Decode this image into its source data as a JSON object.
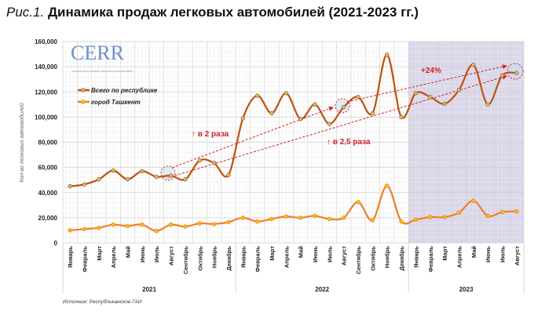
{
  "title": {
    "figure": "Рис.1.",
    "text": "Динамика продаж легковых автомобилей (2021-2023 гг.)"
  },
  "logo": {
    "text": "CERR",
    "subtitle": "CENTER FOR ECONOMIC RESEARCH AND REFORMS"
  },
  "source": "Источник: Республиканское ГАИ",
  "colors": {
    "republic": "#c0500a",
    "tashkent": "#f07f2a",
    "marker_fill": "#f5c400",
    "republic_marker_edge": "#7b5ab0",
    "highlight_2023": "#d9d6ea",
    "annotation": "#d0202a"
  },
  "annotations": [
    {
      "text": "↑ в 2 раза"
    },
    {
      "text": "↑ в 2,5 раза"
    },
    {
      "text": "+24%"
    }
  ],
  "chart_data": {
    "type": "line",
    "title": "Динамика продаж легковых автомобилей (2021-2023 гг.)",
    "ylabel": "Кол-во легковых автомобилей",
    "xlabel": "",
    "ylim": [
      0,
      160000
    ],
    "yticks": [
      "0",
      "20,000",
      "40,000",
      "60,000",
      "80,000",
      "100,000",
      "120,000",
      "140,000",
      "160,000"
    ],
    "ytick_values": [
      0,
      20000,
      40000,
      60000,
      80000,
      100000,
      120000,
      140000,
      160000
    ],
    "grid": true,
    "legend": "top-left",
    "years": [
      {
        "label": "2021",
        "months": 12
      },
      {
        "label": "2022",
        "months": 12
      },
      {
        "label": "2023",
        "months": 8
      }
    ],
    "categories": [
      "Январь",
      "Февраль",
      "Март",
      "Апрель",
      "Май",
      "Июнь",
      "Июль",
      "Август",
      "Сентябрь",
      "Октябрь",
      "Ноябрь",
      "Декабрь",
      "Январь",
      "Февраль",
      "Март",
      "Апрель",
      "Май",
      "Июнь",
      "Июль",
      "Август",
      "Сентябрь",
      "Октябрь",
      "Ноябрь",
      "Декабрь",
      "Январь",
      "Февраль",
      "Март",
      "Апрель",
      "Май",
      "Июнь",
      "Июль",
      "Август"
    ],
    "series": [
      {
        "name": "Всего по республике",
        "values": [
          45000,
          46500,
          50500,
          57500,
          50500,
          57000,
          52500,
          53500,
          50500,
          65500,
          63500,
          54000,
          99000,
          117000,
          103000,
          119000,
          98500,
          110000,
          94500,
          108000,
          116000,
          103000,
          149500,
          100000,
          119000,
          116000,
          110500,
          121500,
          141500,
          110000,
          133000,
          135000
        ]
      },
      {
        "name": "город Ташкент",
        "values": [
          10000,
          11000,
          12000,
          14500,
          13500,
          14500,
          9500,
          14500,
          13000,
          15500,
          15000,
          16500,
          20000,
          17000,
          19000,
          21000,
          20000,
          21500,
          19000,
          20000,
          32500,
          18000,
          45500,
          17000,
          18500,
          20500,
          20500,
          24000,
          33500,
          21500,
          24500,
          25000
        ]
      }
    ]
  }
}
